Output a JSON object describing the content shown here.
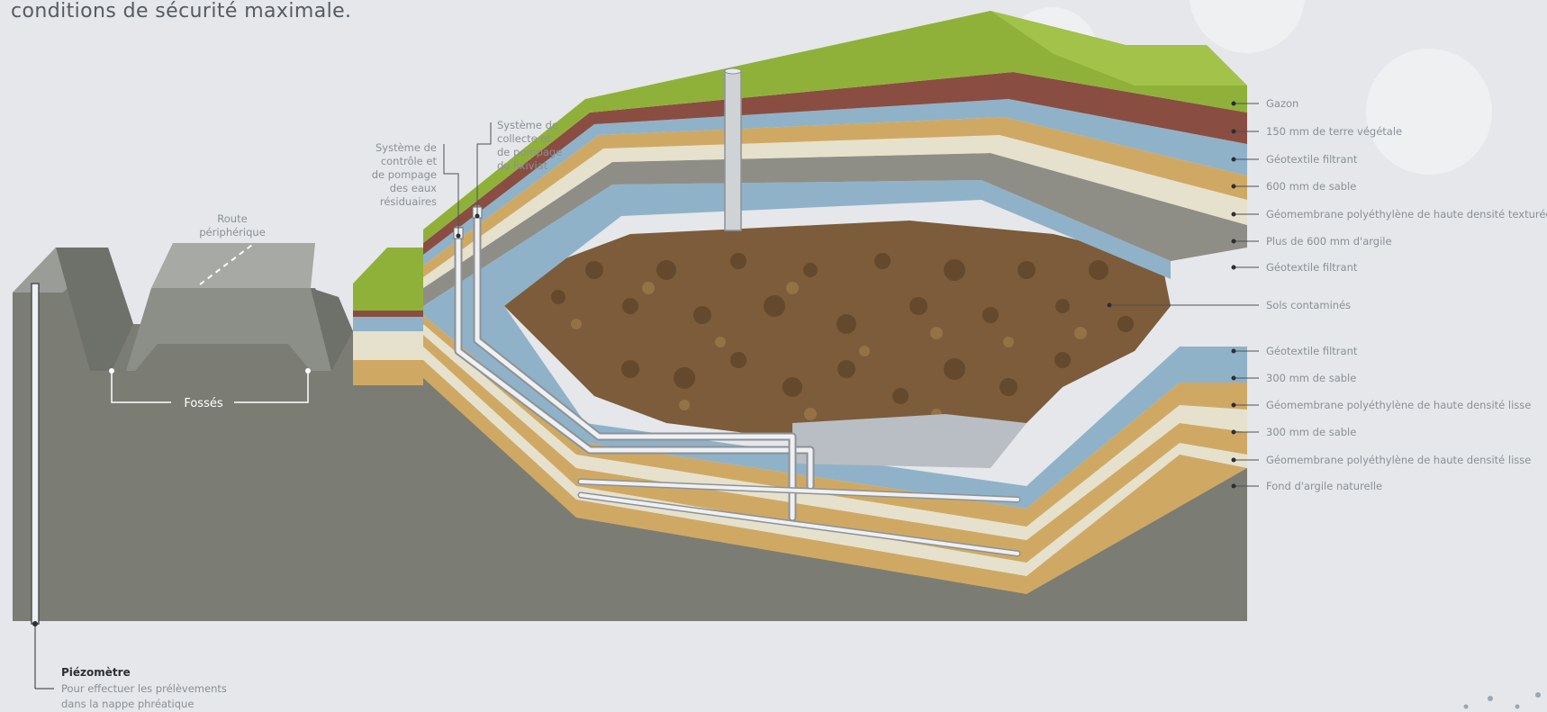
{
  "intro_text": "conditions de sécurité maximale.",
  "labels": {
    "route": [
      "Route",
      "périphérique"
    ],
    "fosses": "Fossés",
    "controle": [
      "Système de",
      "contrôle et",
      "de pompage",
      "des eaux",
      "résiduaires"
    ],
    "collecte": [
      "Système de",
      "collecte et",
      "de pompage",
      "du lixiviat"
    ],
    "piezometre_title": "Piézomètre",
    "piezometre_desc": [
      "Pour effectuer les prélèvements",
      "dans la nappe phréatique"
    ]
  },
  "layers_right": [
    "Gazon",
    "150 mm de terre végétale",
    "Géotextile filtrant",
    "600 mm de sable",
    "Géomembrane polyéthylène de haute densité texturée",
    "Plus de 600 mm d'argile",
    "Géotextile filtrant",
    "Sols contaminés",
    "Géotextile filtrant",
    "300 mm de sable",
    "Géomembrane polyéthylène de haute densité lisse",
    "300 mm de sable",
    "Géomembrane polyéthylène de haute densité lisse",
    "Fond d'argile naturelle"
  ],
  "colors": {
    "background": "#e5e7ea",
    "ground": "#7b7d74",
    "grass": "#8fb13a",
    "topsoil": "#8a4d42",
    "geotextile": "#8fb2c9",
    "sand": "#cfa964",
    "membrane": "#e6e1cc",
    "clay": "#8f8e86",
    "soil": "#7c5c3a"
  }
}
